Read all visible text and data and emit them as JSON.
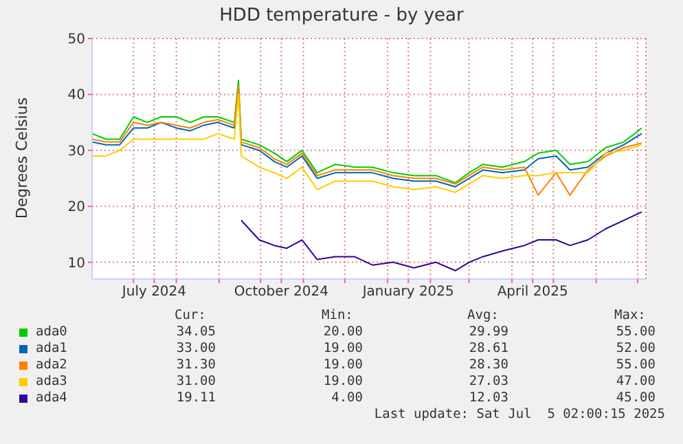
{
  "chart_data": {
    "type": "line",
    "title": "HDD temperature - by year",
    "ylabel": "Degrees Celsius",
    "x": [
      "2024-06-01",
      "2024-06-11",
      "2024-06-21",
      "2024-07-01",
      "2024-07-11",
      "2024-07-21",
      "2024-08-01",
      "2024-08-11",
      "2024-08-21",
      "2024-08-31",
      "2024-09-12",
      "2024-09-15",
      "2024-09-17",
      "2024-09-30",
      "2024-10-11",
      "2024-10-20",
      "2024-10-31",
      "2024-11-11",
      "2024-11-24",
      "2024-12-08",
      "2024-12-21",
      "2025-01-05",
      "2025-01-20",
      "2025-02-05",
      "2025-02-19",
      "2025-03-01",
      "2025-03-11",
      "2025-03-25",
      "2025-04-10",
      "2025-04-20",
      "2025-05-03",
      "2025-05-13",
      "2025-05-26",
      "2025-06-08",
      "2025-06-21",
      "2025-07-04"
    ],
    "series": [
      {
        "name": "ada0",
        "color": "#00cc00",
        "values": [
          33,
          32,
          32,
          36,
          35,
          36,
          36,
          35,
          36,
          36,
          35,
          42.5,
          32,
          31,
          29.5,
          28,
          30,
          26,
          27.5,
          27,
          27,
          26,
          25.5,
          25.5,
          24.2,
          26,
          27.5,
          27,
          28,
          29.5,
          30,
          27.5,
          28,
          30.5,
          31.5,
          34
        ]
      },
      {
        "name": "ada1",
        "color": "#0066b3",
        "values": [
          31.5,
          31,
          31,
          34,
          34,
          35,
          34,
          33.5,
          34.5,
          35,
          34,
          40.5,
          31,
          30,
          28,
          27,
          29,
          25,
          26,
          26,
          26,
          25,
          24.5,
          24.5,
          23.5,
          25,
          26.5,
          26,
          26.5,
          28.5,
          29,
          26.5,
          27,
          29.5,
          31,
          33
        ]
      },
      {
        "name": "ada2",
        "color": "#ff8000",
        "values": [
          32,
          31.5,
          31.5,
          35,
          34.5,
          35,
          34.5,
          34,
          35,
          35.5,
          34.5,
          41.5,
          31.5,
          30.5,
          28.5,
          27.5,
          29.5,
          25.5,
          26.5,
          26.5,
          26.5,
          25.5,
          25,
          25,
          24,
          25.5,
          27,
          26.5,
          27,
          22,
          26,
          22,
          26.5,
          29,
          30.5,
          31.3
        ]
      },
      {
        "name": "ada3",
        "color": "#ffcc00",
        "values": [
          29,
          29,
          30,
          32,
          32,
          32,
          32,
          32,
          32,
          33,
          32,
          40,
          29,
          27,
          26,
          25,
          27,
          23,
          24.5,
          24.5,
          24.5,
          23.5,
          23,
          23.5,
          22.5,
          24,
          25.5,
          25,
          25.5,
          25.5,
          26,
          26,
          26,
          29.5,
          30,
          31
        ]
      },
      {
        "name": "ada4",
        "color": "#330099",
        "values": [
          null,
          null,
          null,
          null,
          null,
          null,
          null,
          null,
          null,
          null,
          null,
          null,
          17.5,
          14,
          13,
          12.5,
          14,
          10.5,
          11,
          11,
          9.5,
          10,
          9,
          10,
          8.5,
          10,
          11,
          12,
          13,
          14,
          14,
          13,
          14,
          16,
          17.5,
          19
        ]
      }
    ],
    "xlim": [
      "2024-06-01",
      "2025-07-07"
    ],
    "xticks": [
      {
        "value": "2024-07-01",
        "label": null
      },
      {
        "value": "2024-07-16",
        "label": "July 2024"
      },
      {
        "value": "2024-08-01",
        "label": null
      },
      {
        "value": "2024-09-01",
        "label": null
      },
      {
        "value": "2024-10-01",
        "label": null
      },
      {
        "value": "2024-10-16",
        "label": "October 2024"
      },
      {
        "value": "2024-11-01",
        "label": null
      },
      {
        "value": "2024-12-01",
        "label": null
      },
      {
        "value": "2025-01-01",
        "label": null
      },
      {
        "value": "2025-01-16",
        "label": "January 2025"
      },
      {
        "value": "2025-02-01",
        "label": null
      },
      {
        "value": "2025-03-01",
        "label": null
      },
      {
        "value": "2025-04-01",
        "label": null
      },
      {
        "value": "2025-04-16",
        "label": "April 2025"
      },
      {
        "value": "2025-05-01",
        "label": null
      },
      {
        "value": "2025-06-01",
        "label": null
      },
      {
        "value": "2025-07-01",
        "label": null
      }
    ],
    "ylim": [
      7,
      50
    ],
    "yticks": [
      10,
      20,
      30,
      40,
      50
    ],
    "grid": true,
    "legend": "bottom",
    "marker": "none",
    "line_style": "solid",
    "annotations": [
      "Cur:",
      "Min:",
      "Avg:",
      "Max:",
      "34.05",
      "20.00",
      "29.99",
      "55.00",
      "33.00",
      "19.00",
      "28.61",
      "52.00",
      "31.30",
      "19.00",
      "28.30",
      "55.00",
      "31.00",
      "19.00",
      "27.03",
      "47.00",
      "19.11",
      "4.00",
      "12.03",
      "45.00",
      "Last update: Sat Jul  5 02:00:15 2025"
    ]
  }
}
